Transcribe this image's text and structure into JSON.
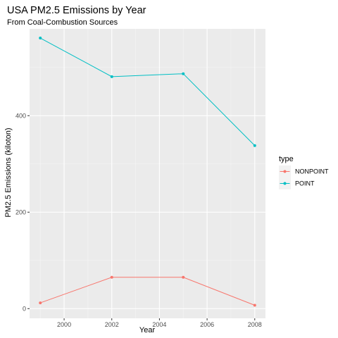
{
  "chart_data": {
    "type": "line",
    "title": "USA PM2.5 Emissions by Year",
    "subtitle": "From Coal-Combustion Sources",
    "xlabel": "Year",
    "ylabel": "PM2.5 Emissions (kiloton)",
    "x": [
      1999,
      2002,
      2005,
      2008
    ],
    "xlim": [
      1998.55,
      2008.45
    ],
    "ylim": [
      -20,
      580
    ],
    "x_ticks": [
      2000,
      2002,
      2004,
      2006,
      2008
    ],
    "y_ticks": [
      0,
      200,
      400
    ],
    "grid": true,
    "legend_position": "right",
    "legend_title": "type",
    "series": [
      {
        "name": "NONPOINT",
        "color": "#F8766D",
        "values": [
          12,
          65,
          65,
          7
        ]
      },
      {
        "name": "POINT",
        "color": "#00BFC4",
        "values": [
          561,
          481,
          487,
          338
        ]
      }
    ]
  },
  "style": {
    "panel_background": "#EBEBEB",
    "grid_major": "#FFFFFF",
    "grid_minor": "#F5F5F5",
    "tick_color": "#333333"
  }
}
